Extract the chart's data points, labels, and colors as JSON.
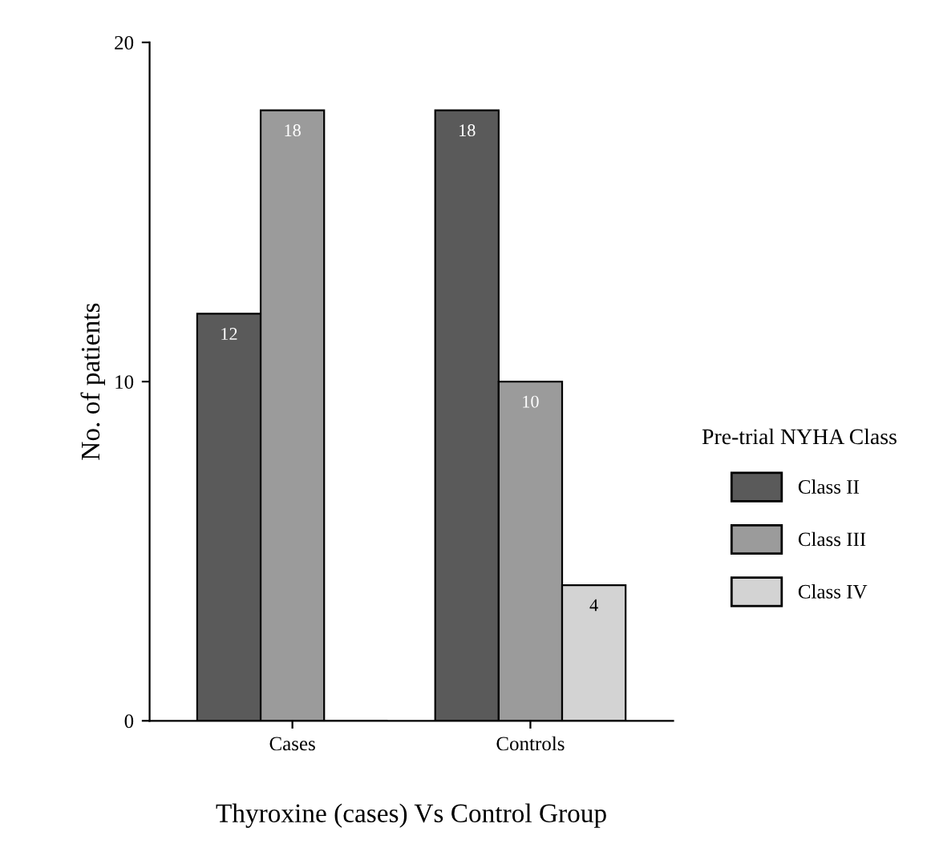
{
  "chart_data": {
    "type": "bar",
    "xlabel": "Thyroxine (cases) Vs Control Group",
    "ylabel": "No. of patients",
    "legend_title": "Pre-trial NYHA Class",
    "categories": [
      "Cases",
      "Controls"
    ],
    "series": [
      {
        "name": "Class II",
        "color": "#5a5a5a",
        "values": [
          12,
          18
        ],
        "value_labels": [
          "12",
          "18"
        ]
      },
      {
        "name": "Class III",
        "color": "#9b9b9b",
        "values": [
          18,
          10
        ],
        "value_labels": [
          "18",
          "10"
        ]
      },
      {
        "name": "Class IV",
        "color": "#d3d3d3",
        "values": [
          0,
          4
        ],
        "value_labels": [
          null,
          "4"
        ]
      }
    ],
    "ylim": [
      0,
      20
    ],
    "yticks": [
      0,
      10,
      20
    ],
    "grid": false,
    "legend": "right"
  }
}
